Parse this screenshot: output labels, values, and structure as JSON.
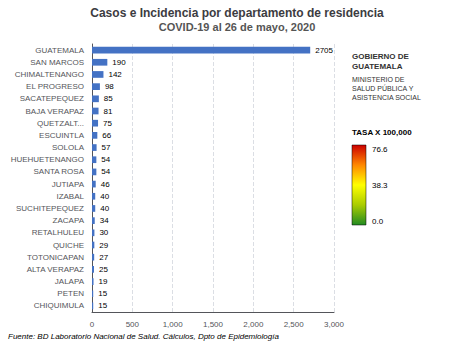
{
  "chart_data": {
    "type": "bar",
    "orientation": "horizontal",
    "title": "Casos e Incidencia por departamento de residencia",
    "subtitle": "COVID-19 al 26 de mayo, 2020",
    "categories": [
      "GUATEMALA",
      "SAN MARCOS",
      "CHIMALTENANGO",
      "EL PROGRESO",
      "SACATEPEQUEZ",
      "BAJA VERAPAZ",
      "QUETZALT...",
      "ESCUINTLA",
      "SOLOLA",
      "HUEHUETENANGO",
      "SANTA ROSA",
      "JUTIAPA",
      "IZABAL",
      "SUCHITEPEQUEZ",
      "ZACAPA",
      "RETALHULEU",
      "QUICHE",
      "TOTONICAPAN",
      "ALTA VERAPAZ",
      "JALAPA",
      "PETEN",
      "CHIQUIMULA"
    ],
    "values": [
      2705,
      190,
      142,
      98,
      85,
      81,
      75,
      66,
      57,
      54,
      54,
      46,
      40,
      40,
      34,
      30,
      29,
      27,
      25,
      19,
      15,
      15
    ],
    "color": "#4472C4",
    "xlim": [
      0,
      3000
    ],
    "xticks": [
      0,
      500,
      1000,
      1500,
      2000,
      2500,
      3000
    ],
    "grid": true,
    "data_labels": true,
    "annotations": [
      "GOBIERNO DE",
      "GUATEMALA",
      "MINISTERIO DE",
      "SALUD PÚBLICA Y",
      "ASISTENCIA SOCIAL",
      "TASA X 100,000",
      "76.6",
      "38.3",
      "0.0",
      "Fuente: BD Laboratorio Nacional de Salud. Cálculos, Dpto de Epidemiología"
    ]
  }
}
